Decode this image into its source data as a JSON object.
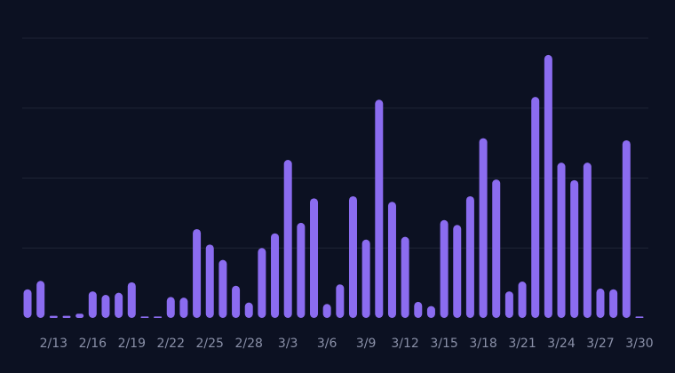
{
  "chart_data": {
    "type": "bar",
    "categories": [
      null,
      null,
      "2/13",
      null,
      null,
      "2/16",
      null,
      null,
      "2/19",
      null,
      null,
      "2/22",
      null,
      null,
      "2/25",
      null,
      null,
      "2/28",
      null,
      null,
      "3/3",
      null,
      null,
      "3/6",
      null,
      null,
      "3/9",
      null,
      null,
      "3/12",
      null,
      null,
      "3/15",
      null,
      null,
      "3/18",
      null,
      null,
      "3/21",
      null,
      null,
      "3/24",
      null,
      null,
      "3/27",
      null,
      null,
      "3/30"
    ],
    "values": [
      0.41,
      0.53,
      0.03,
      0.03,
      0.06,
      0.38,
      0.33,
      0.36,
      0.51,
      0.02,
      0.02,
      0.3,
      0.29,
      1.27,
      1.05,
      0.83,
      0.46,
      0.22,
      1.0,
      1.21,
      2.26,
      1.36,
      1.71,
      0.2,
      0.48,
      1.74,
      1.12,
      3.12,
      1.66,
      1.16,
      0.23,
      0.17,
      1.4,
      1.33,
      1.74,
      2.57,
      1.98,
      0.38,
      0.52,
      3.16,
      3.76,
      2.22,
      1.97,
      2.22,
      0.42,
      0.41,
      2.54,
      0.02
    ],
    "color": "#8b6cf0",
    "ylim": [
      0,
      4
    ],
    "yticks": [
      0,
      1,
      2,
      3,
      4
    ],
    "grid": true
  }
}
